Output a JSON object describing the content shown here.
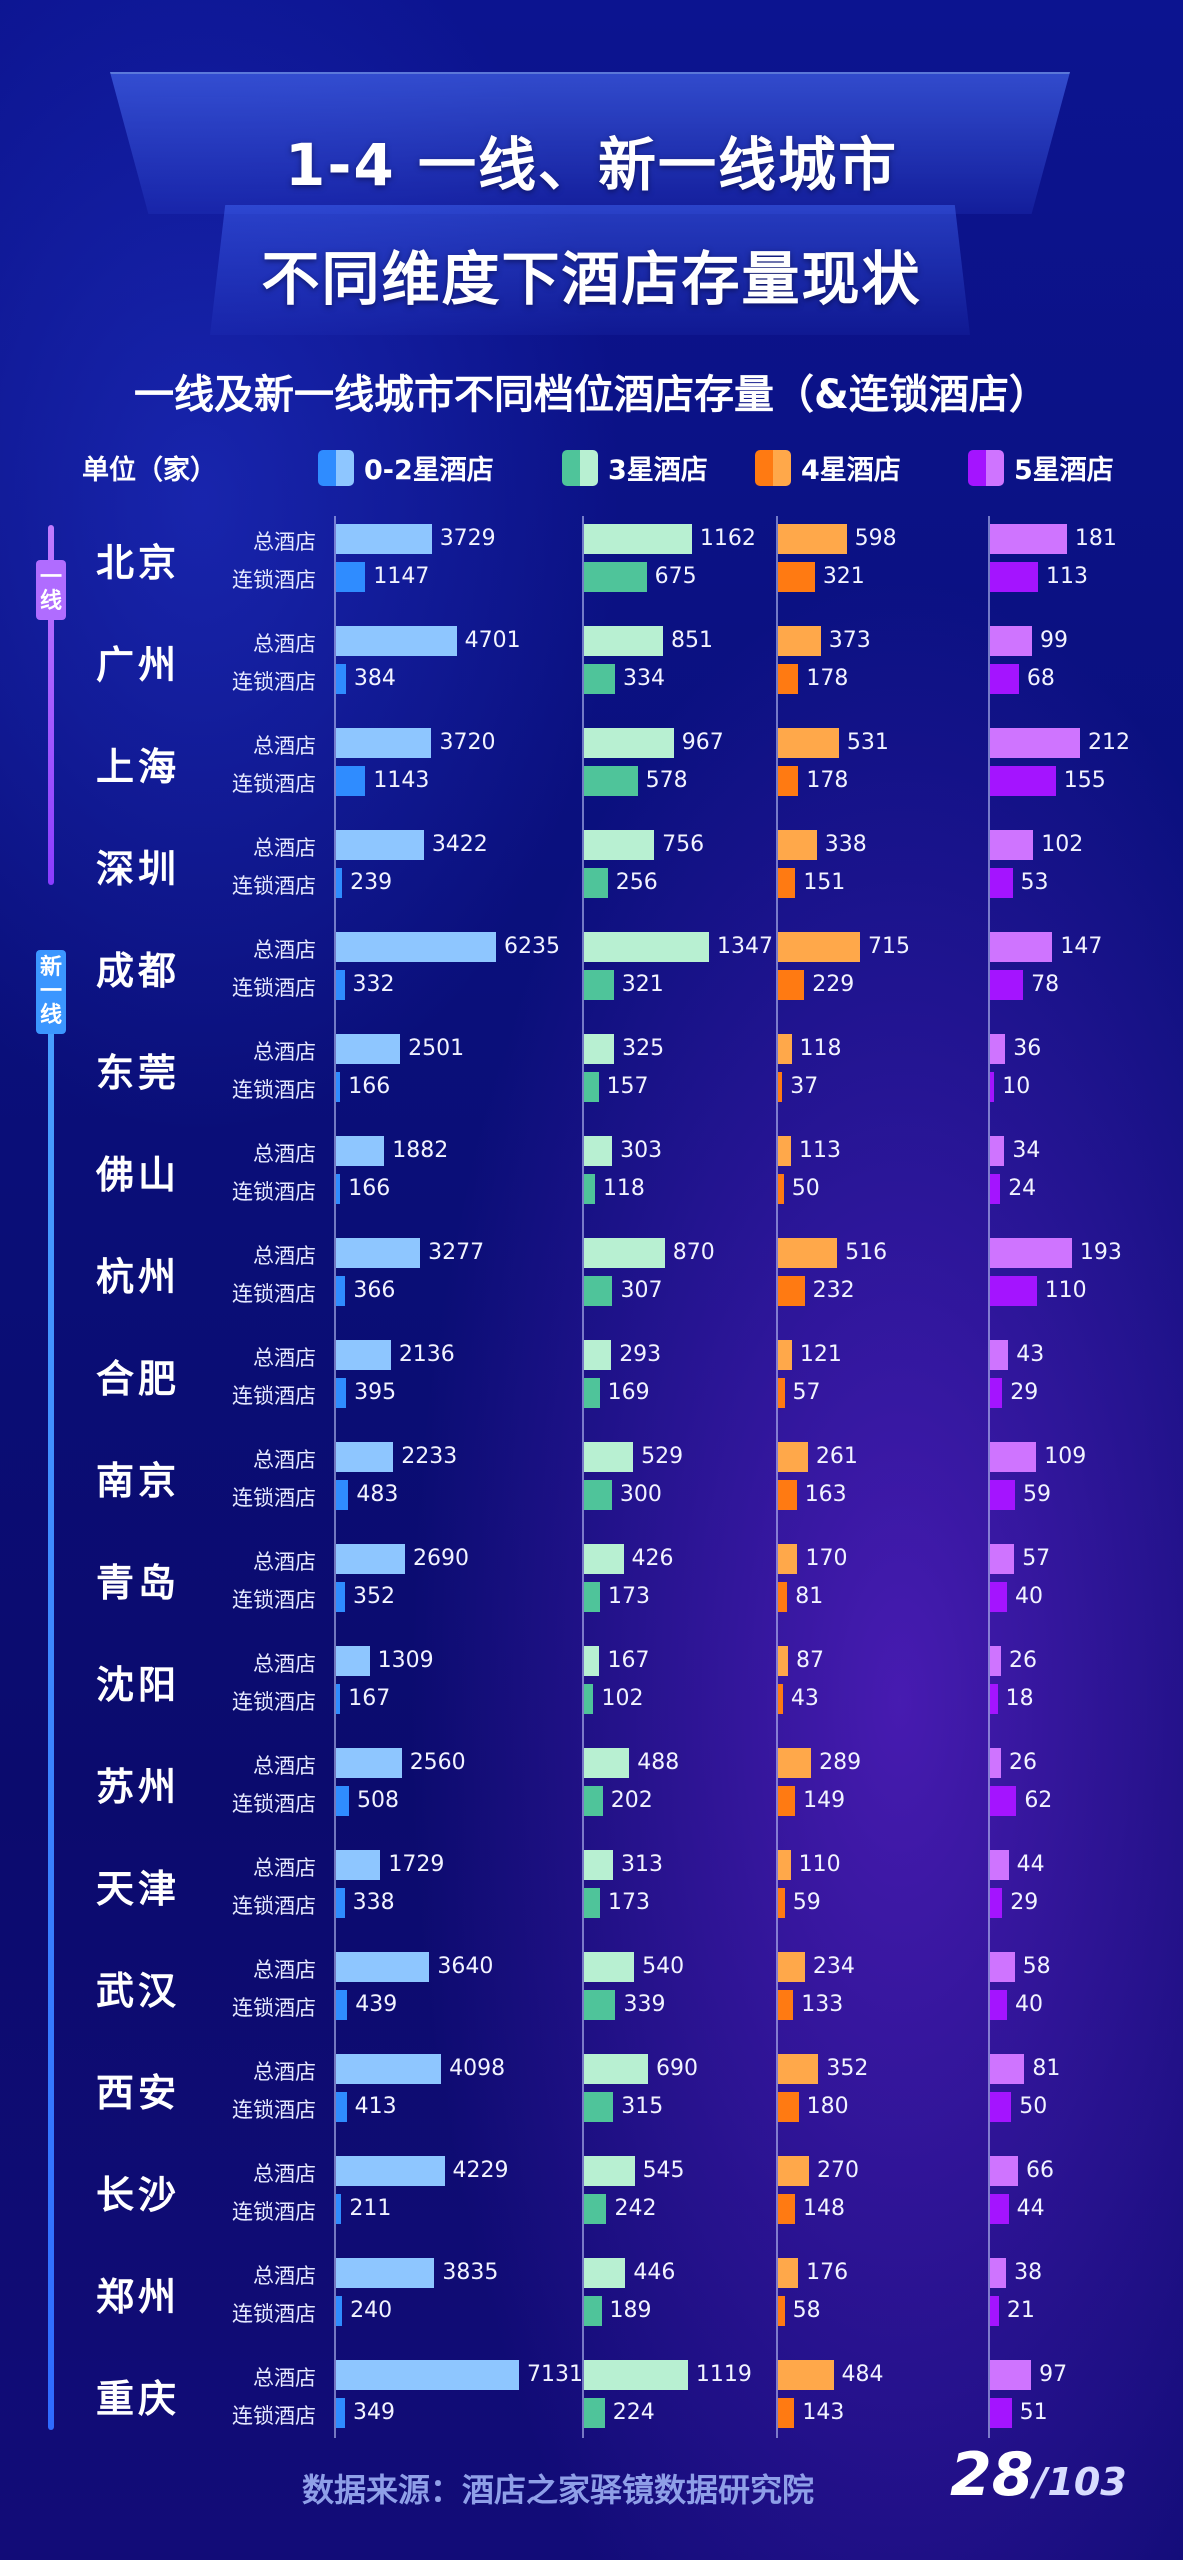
{
  "title_line1": "1-4 一线、新一线城市",
  "title_line2": "不同维度下酒店存量现状",
  "chart_data": {
    "type": "bar",
    "title": "一线及新一线城市不同档位酒店存量（&连锁酒店）",
    "unit": "单位（家）",
    "tiers": [
      {
        "label": "一线"
      },
      {
        "label": "新一线"
      }
    ],
    "row_labels": [
      "总酒店",
      "连锁酒店"
    ],
    "categories": [
      "0-2星酒店",
      "3星酒店",
      "4星酒店",
      "5星酒店"
    ],
    "colors": {
      "c0_total": "#8ec6ff",
      "c0_chain": "#2f8cff",
      "c1_total": "#b8f0d2",
      "c1_chain": "#4fc49a",
      "c2_total": "#ffa84a",
      "c2_chain": "#ff7a12",
      "c3_total": "#cf74ff",
      "c3_chain": "#a414ff"
    },
    "cities": [
      {
        "name": "北京",
        "tier": "一线",
        "total": [
          3729,
          1162,
          598,
          181
        ],
        "chain": [
          1147,
          675,
          321,
          113
        ]
      },
      {
        "name": "广州",
        "tier": "一线",
        "total": [
          4701,
          851,
          373,
          99
        ],
        "chain": [
          384,
          334,
          178,
          68
        ]
      },
      {
        "name": "上海",
        "tier": "一线",
        "total": [
          3720,
          967,
          531,
          212
        ],
        "chain": [
          1143,
          578,
          178,
          155
        ]
      },
      {
        "name": "深圳",
        "tier": "一线",
        "total": [
          3422,
          756,
          338,
          102
        ],
        "chain": [
          239,
          256,
          151,
          53
        ]
      },
      {
        "name": "成都",
        "tier": "新一线",
        "total": [
          6235,
          1347,
          715,
          147
        ],
        "chain": [
          332,
          321,
          229,
          78
        ]
      },
      {
        "name": "东莞",
        "tier": "新一线",
        "total": [
          2501,
          325,
          118,
          36
        ],
        "chain": [
          166,
          157,
          37,
          10
        ]
      },
      {
        "name": "佛山",
        "tier": "新一线",
        "total": [
          1882,
          303,
          113,
          34
        ],
        "chain": [
          166,
          118,
          50,
          24
        ]
      },
      {
        "name": "杭州",
        "tier": "新一线",
        "total": [
          3277,
          870,
          516,
          193
        ],
        "chain": [
          366,
          307,
          232,
          110
        ]
      },
      {
        "name": "合肥",
        "tier": "新一线",
        "total": [
          2136,
          293,
          121,
          43
        ],
        "chain": [
          395,
          169,
          57,
          29
        ]
      },
      {
        "name": "南京",
        "tier": "新一线",
        "total": [
          2233,
          529,
          261,
          109
        ],
        "chain": [
          483,
          300,
          163,
          59
        ]
      },
      {
        "name": "青岛",
        "tier": "新一线",
        "total": [
          2690,
          426,
          170,
          57
        ],
        "chain": [
          352,
          173,
          81,
          40
        ]
      },
      {
        "name": "沈阳",
        "tier": "新一线",
        "total": [
          1309,
          167,
          87,
          26
        ],
        "chain": [
          167,
          102,
          43,
          18
        ]
      },
      {
        "name": "苏州",
        "tier": "新一线",
        "total": [
          2560,
          488,
          289,
          26
        ],
        "chain": [
          508,
          202,
          149,
          62
        ]
      },
      {
        "name": "天津",
        "tier": "新一线",
        "total": [
          1729,
          313,
          110,
          44
        ],
        "chain": [
          338,
          173,
          59,
          29
        ]
      },
      {
        "name": "武汉",
        "tier": "新一线",
        "total": [
          3640,
          540,
          234,
          58
        ],
        "chain": [
          439,
          339,
          133,
          40
        ]
      },
      {
        "name": "西安",
        "tier": "新一线",
        "total": [
          4098,
          690,
          352,
          81
        ],
        "chain": [
          413,
          315,
          180,
          50
        ]
      },
      {
        "name": "长沙",
        "tier": "新一线",
        "total": [
          4229,
          545,
          270,
          66
        ],
        "chain": [
          211,
          242,
          148,
          44
        ]
      },
      {
        "name": "郑州",
        "tier": "新一线",
        "total": [
          3835,
          446,
          176,
          38
        ],
        "chain": [
          240,
          189,
          58,
          21
        ]
      },
      {
        "name": "重庆",
        "tier": "新一线",
        "total": [
          7131,
          1119,
          484,
          97
        ],
        "chain": [
          349,
          224,
          143,
          51
        ]
      }
    ]
  },
  "footer": {
    "source": "数据来源：酒店之家驿镜数据研究院",
    "page_current": "28",
    "page_total": "/103"
  }
}
